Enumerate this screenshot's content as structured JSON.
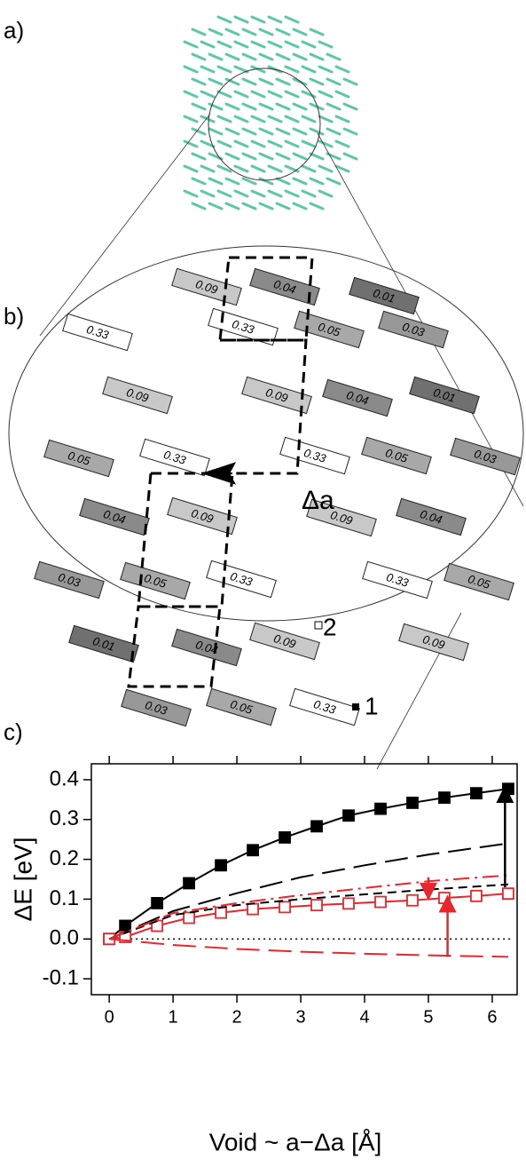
{
  "panel_labels": [
    "a)",
    "b)",
    "c)"
  ],
  "molecules": [
    {
      "label": "0.09",
      "color": "#c8c8c8"
    },
    {
      "label": "0.04",
      "color": "#8a8a8a"
    },
    {
      "label": "0.01",
      "color": "#707070"
    },
    {
      "label": "0.33",
      "color": "#ffffff"
    },
    {
      "label": "0.33",
      "color": "#ffffff"
    },
    {
      "label": "0.05",
      "color": "#a8a8a8"
    },
    {
      "label": "0.03",
      "color": "#989898"
    },
    {
      "label": "0.09",
      "color": "#c8c8c8"
    },
    {
      "label": "0.09",
      "color": "#c8c8c8"
    },
    {
      "label": "0.04",
      "color": "#8a8a8a"
    },
    {
      "label": "0.01",
      "color": "#707070"
    },
    {
      "label": "0.05",
      "color": "#a8a8a8"
    },
    {
      "label": "0.33",
      "color": "#ffffff"
    },
    {
      "label": "0.33",
      "color": "#ffffff"
    },
    {
      "label": "0.05",
      "color": "#a8a8a8"
    },
    {
      "label": "0.03",
      "color": "#989898"
    },
    {
      "label": "0.04",
      "color": "#8a8a8a"
    },
    {
      "label": "0.09",
      "color": "#c8c8c8"
    },
    {
      "label": "0.09",
      "color": "#c8c8c8"
    },
    {
      "label": "0.04",
      "color": "#8a8a8a"
    },
    {
      "label": "0.03",
      "color": "#989898"
    },
    {
      "label": "0.05",
      "color": "#a8a8a8"
    },
    {
      "label": "0.33",
      "color": "#ffffff"
    },
    {
      "label": "0.33",
      "color": "#ffffff"
    },
    {
      "label": "0.05",
      "color": "#a8a8a8"
    },
    {
      "label": "0.01",
      "color": "#707070"
    },
    {
      "label": "0.04",
      "color": "#8a8a8a"
    },
    {
      "label": "0.09",
      "color": "#c8c8c8"
    },
    {
      "label": "0.09",
      "color": "#c8c8c8"
    },
    {
      "label": "0.03",
      "color": "#989898"
    },
    {
      "label": "0.05",
      "color": "#a8a8a8"
    },
    {
      "label": "0.33",
      "color": "#ffffff"
    }
  ],
  "shift_label": "Δa",
  "site_labels": [
    "1",
    "2"
  ],
  "chart_data": {
    "type": "line",
    "xlabel": "Void ~ a−Δa [Å]",
    "ylabel": "ΔE [eV]",
    "xlim": [
      -0.28,
      6.39
    ],
    "ylim": [
      -0.14,
      0.44
    ],
    "xticks": [
      0,
      1,
      2,
      3,
      4,
      5,
      6
    ],
    "yticks": [
      0.4,
      0.3,
      0.2,
      0.1,
      {
        "value": 0,
        "label": "0.0"
      },
      -0.1
    ],
    "hline": 0,
    "series": [
      {
        "color": "#000000",
        "marker": "filled",
        "dash": "solid",
        "x": [
          0,
          0.25,
          0.75,
          1.25,
          1.75,
          2.25,
          2.75,
          3.25,
          3.75,
          4.25,
          4.75,
          5.25,
          5.75,
          6.25
        ],
        "values": [
          0,
          0.033,
          0.09,
          0.14,
          0.185,
          0.223,
          0.255,
          0.283,
          0.31,
          0.327,
          0.342,
          0.355,
          0.366,
          0.377
        ]
      },
      {
        "color": "#e8262b",
        "marker": "open",
        "dash": "solid",
        "x": [
          0,
          0.25,
          0.75,
          1.25,
          1.75,
          2.25,
          2.75,
          3.25,
          3.75,
          4.25,
          4.75,
          5.25,
          5.75,
          6.25
        ],
        "values": [
          0,
          0.005,
          0.033,
          0.053,
          0.066,
          0.075,
          0.08,
          0.085,
          0.089,
          0.093,
          0.097,
          0.103,
          0.108,
          0.114
        ]
      },
      {
        "color": "#000000",
        "dash": "long",
        "x": [
          0,
          1,
          2,
          3,
          4,
          5,
          6.25
        ],
        "values": [
          0,
          0.07,
          0.115,
          0.155,
          0.185,
          0.212,
          0.24
        ]
      },
      {
        "color": "#000000",
        "dash": "short",
        "x": [
          0,
          1,
          2,
          3,
          4,
          5,
          6.25
        ],
        "values": [
          0,
          0.06,
          0.085,
          0.1,
          0.112,
          0.124,
          0.137
        ]
      },
      {
        "color": "#e8262b",
        "dash": "dashdot",
        "x": [
          0,
          1,
          2,
          3,
          4,
          5,
          6.25
        ],
        "values": [
          0,
          0.065,
          0.09,
          0.11,
          0.128,
          0.145,
          0.16
        ]
      },
      {
        "color": "#e8262b",
        "dash": "long",
        "x": [
          0,
          1,
          2,
          3,
          4,
          5,
          6.25
        ],
        "values": [
          0,
          -0.015,
          -0.025,
          -0.032,
          -0.037,
          -0.041,
          -0.045
        ]
      }
    ],
    "arrows": [
      {
        "x": 6.2,
        "from": 0.13,
        "to": 0.375,
        "color": "#000000"
      },
      {
        "x": 5.0,
        "from": 0.155,
        "to": 0.108,
        "color": "#e8262b"
      },
      {
        "x": 5.3,
        "from": -0.045,
        "to": 0.1,
        "color": "#e8262b"
      }
    ]
  }
}
